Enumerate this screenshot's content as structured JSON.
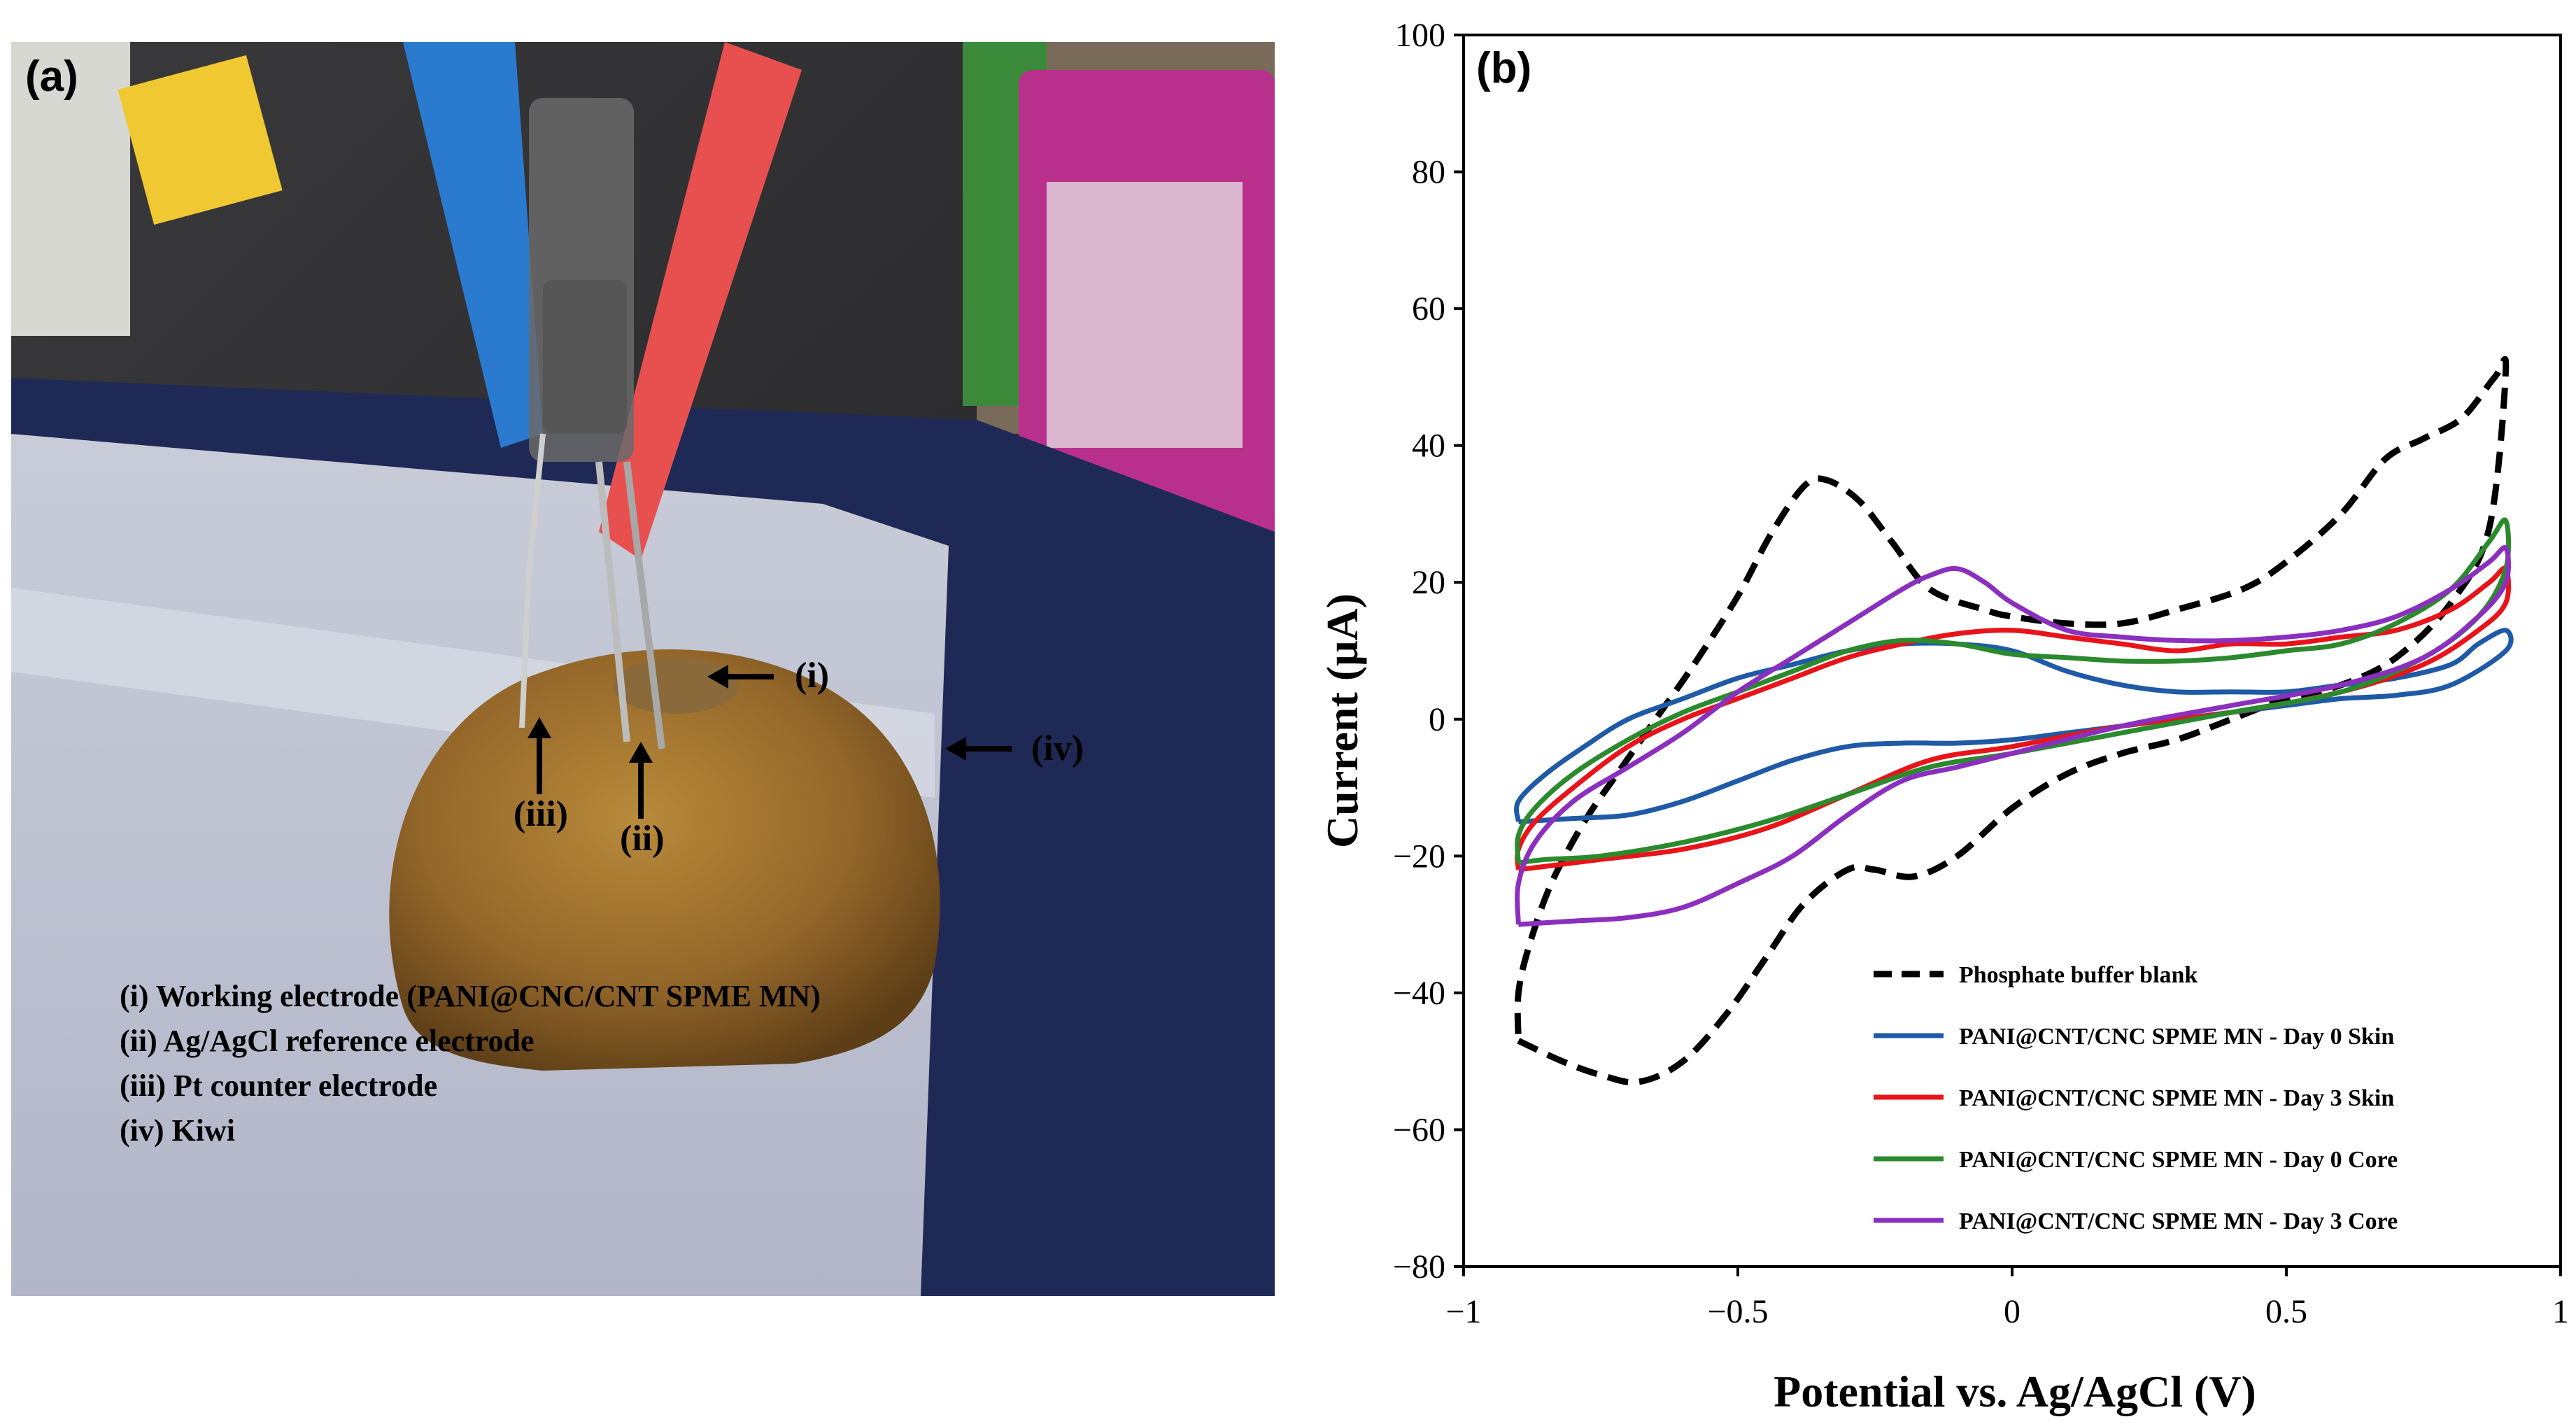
{
  "panel_a": {
    "label": "(a)",
    "markers": [
      "(i)",
      "(ii)",
      "(iii)",
      "(iv)"
    ],
    "legend": [
      "(i) Working electrode (PANI@CNC/CNT SPME MN)",
      "(ii) Ag/AgCl reference electrode",
      "(iii) Pt counter electrode",
      "(iv) Kiwi"
    ]
  },
  "chart_data": {
    "type": "line",
    "panel_label": "(b)",
    "xlabel": "Potential vs. Ag/AgCl (V)",
    "ylabel": "Current (μA)",
    "xlim": [
      -1,
      1
    ],
    "ylim": [
      -80,
      100
    ],
    "x_ticks": [
      -1,
      -0.5,
      0,
      0.5,
      1
    ],
    "x_tick_labels": [
      "−1",
      "−0.5",
      "0",
      "0.5",
      "1"
    ],
    "y_ticks": [
      -80,
      -60,
      -40,
      -20,
      0,
      20,
      40,
      60,
      80,
      100
    ],
    "y_tick_labels": [
      "−80",
      "−60",
      "−40",
      "−20",
      "0",
      "20",
      "40",
      "60",
      "80",
      "100"
    ],
    "grid": false,
    "legend_position": "bottom-right",
    "series": [
      {
        "name": "Phosphate buffer blank",
        "color": "#000000",
        "dashed": true,
        "points": [
          [
            -0.9,
            -47
          ],
          [
            -0.82,
            -50
          ],
          [
            -0.75,
            -52
          ],
          [
            -0.68,
            -53
          ],
          [
            -0.6,
            -50
          ],
          [
            -0.52,
            -43
          ],
          [
            -0.45,
            -35
          ],
          [
            -0.38,
            -27
          ],
          [
            -0.3,
            -22
          ],
          [
            -0.25,
            -22
          ],
          [
            -0.18,
            -23
          ],
          [
            -0.1,
            -20
          ],
          [
            0.0,
            -13
          ],
          [
            0.1,
            -8
          ],
          [
            0.2,
            -5
          ],
          [
            0.3,
            -3
          ],
          [
            0.4,
            0
          ],
          [
            0.5,
            3
          ],
          [
            0.6,
            5
          ],
          [
            0.7,
            9
          ],
          [
            0.8,
            17
          ],
          [
            0.87,
            28
          ],
          [
            0.9,
            51
          ],
          [
            0.88,
            50
          ],
          [
            0.82,
            44
          ],
          [
            0.75,
            41
          ],
          [
            0.68,
            38
          ],
          [
            0.6,
            30
          ],
          [
            0.5,
            23
          ],
          [
            0.42,
            19
          ],
          [
            0.3,
            16
          ],
          [
            0.2,
            14
          ],
          [
            0.1,
            14
          ],
          [
            0.0,
            15
          ],
          [
            -0.05,
            16
          ],
          [
            -0.15,
            19
          ],
          [
            -0.22,
            26
          ],
          [
            -0.28,
            32
          ],
          [
            -0.34,
            35
          ],
          [
            -0.38,
            34
          ],
          [
            -0.44,
            27
          ],
          [
            -0.5,
            18
          ],
          [
            -0.58,
            8
          ],
          [
            -0.65,
            0
          ],
          [
            -0.72,
            -8
          ],
          [
            -0.78,
            -15
          ],
          [
            -0.84,
            -24
          ],
          [
            -0.88,
            -33
          ],
          [
            -0.9,
            -40
          ],
          [
            -0.9,
            -47
          ]
        ]
      },
      {
        "name": "PANI@CNT/CNC SPME MN - Day 0 Skin",
        "color": "#1f5aa6",
        "dashed": false,
        "points": [
          [
            -0.9,
            -15
          ],
          [
            -0.8,
            -14.5
          ],
          [
            -0.7,
            -14
          ],
          [
            -0.6,
            -12
          ],
          [
            -0.5,
            -9
          ],
          [
            -0.4,
            -6
          ],
          [
            -0.3,
            -4
          ],
          [
            -0.2,
            -3.5
          ],
          [
            -0.1,
            -3.5
          ],
          [
            0.0,
            -3
          ],
          [
            0.1,
            -2
          ],
          [
            0.2,
            -1
          ],
          [
            0.3,
            0
          ],
          [
            0.4,
            1
          ],
          [
            0.5,
            2
          ],
          [
            0.6,
            3
          ],
          [
            0.7,
            3.5
          ],
          [
            0.8,
            5
          ],
          [
            0.9,
            10
          ],
          [
            0.9,
            13
          ],
          [
            0.85,
            11
          ],
          [
            0.8,
            8
          ],
          [
            0.7,
            6
          ],
          [
            0.6,
            5
          ],
          [
            0.5,
            4
          ],
          [
            0.4,
            4
          ],
          [
            0.3,
            4
          ],
          [
            0.2,
            5
          ],
          [
            0.1,
            7
          ],
          [
            0.0,
            10
          ],
          [
            -0.1,
            11
          ],
          [
            -0.2,
            11
          ],
          [
            -0.3,
            10
          ],
          [
            -0.4,
            8
          ],
          [
            -0.5,
            6
          ],
          [
            -0.6,
            3
          ],
          [
            -0.7,
            0
          ],
          [
            -0.78,
            -4
          ],
          [
            -0.85,
            -8
          ],
          [
            -0.9,
            -12
          ],
          [
            -0.9,
            -15
          ]
        ]
      },
      {
        "name": "PANI@CNT/CNC SPME MN - Day 3 Skin",
        "color": "#e8141a",
        "dashed": false,
        "points": [
          [
            -0.9,
            -22
          ],
          [
            -0.85,
            -21.5
          ],
          [
            -0.75,
            -20.5
          ],
          [
            -0.6,
            -19
          ],
          [
            -0.45,
            -16
          ],
          [
            -0.3,
            -11
          ],
          [
            -0.15,
            -6
          ],
          [
            0.0,
            -4
          ],
          [
            0.2,
            -1
          ],
          [
            0.4,
            1
          ],
          [
            0.6,
            4
          ],
          [
            0.75,
            8
          ],
          [
            0.85,
            13
          ],
          [
            0.9,
            17
          ],
          [
            0.9,
            22
          ],
          [
            0.87,
            20
          ],
          [
            0.8,
            16
          ],
          [
            0.7,
            13
          ],
          [
            0.6,
            12
          ],
          [
            0.5,
            11
          ],
          [
            0.4,
            11
          ],
          [
            0.3,
            10
          ],
          [
            0.2,
            11
          ],
          [
            0.1,
            12
          ],
          [
            0.0,
            13
          ],
          [
            -0.1,
            12.5
          ],
          [
            -0.2,
            11
          ],
          [
            -0.3,
            9
          ],
          [
            -0.4,
            6
          ],
          [
            -0.5,
            3
          ],
          [
            -0.6,
            0
          ],
          [
            -0.7,
            -4
          ],
          [
            -0.8,
            -10
          ],
          [
            -0.87,
            -15
          ],
          [
            -0.9,
            -19
          ],
          [
            -0.9,
            -22
          ]
        ]
      },
      {
        "name": "PANI@CNT/CNC SPME MN - Day 0 Core",
        "color": "#2b8a2e",
        "dashed": false,
        "points": [
          [
            -0.9,
            -21
          ],
          [
            -0.85,
            -20.5
          ],
          [
            -0.75,
            -20
          ],
          [
            -0.6,
            -18
          ],
          [
            -0.45,
            -15
          ],
          [
            -0.3,
            -11
          ],
          [
            -0.15,
            -7
          ],
          [
            0.0,
            -5
          ],
          [
            0.2,
            -2
          ],
          [
            0.4,
            1
          ],
          [
            0.6,
            4
          ],
          [
            0.75,
            9
          ],
          [
            0.85,
            15
          ],
          [
            0.9,
            22
          ],
          [
            0.9,
            29
          ],
          [
            0.87,
            26
          ],
          [
            0.8,
            19
          ],
          [
            0.7,
            14
          ],
          [
            0.6,
            11
          ],
          [
            0.5,
            10
          ],
          [
            0.4,
            9
          ],
          [
            0.3,
            8.5
          ],
          [
            0.2,
            8.5
          ],
          [
            0.1,
            9
          ],
          [
            0.0,
            9.5
          ],
          [
            -0.1,
            11
          ],
          [
            -0.2,
            11.5
          ],
          [
            -0.3,
            10
          ],
          [
            -0.4,
            7
          ],
          [
            -0.5,
            4
          ],
          [
            -0.6,
            1
          ],
          [
            -0.7,
            -3
          ],
          [
            -0.8,
            -8
          ],
          [
            -0.87,
            -13
          ],
          [
            -0.9,
            -17
          ],
          [
            -0.9,
            -21
          ]
        ]
      },
      {
        "name": "PANI@CNT/CNC SPME MN - Day 3 Core",
        "color": "#8b2fbf",
        "dashed": false,
        "points": [
          [
            -0.9,
            -30
          ],
          [
            -0.8,
            -29.5
          ],
          [
            -0.7,
            -29
          ],
          [
            -0.6,
            -27.5
          ],
          [
            -0.5,
            -24
          ],
          [
            -0.4,
            -20
          ],
          [
            -0.3,
            -14
          ],
          [
            -0.2,
            -9
          ],
          [
            -0.1,
            -7
          ],
          [
            0.0,
            -5
          ],
          [
            0.2,
            -1
          ],
          [
            0.4,
            2
          ],
          [
            0.6,
            5
          ],
          [
            0.75,
            9
          ],
          [
            0.85,
            15
          ],
          [
            0.9,
            20
          ],
          [
            0.9,
            25
          ],
          [
            0.87,
            23
          ],
          [
            0.8,
            19
          ],
          [
            0.7,
            15
          ],
          [
            0.6,
            13
          ],
          [
            0.5,
            12
          ],
          [
            0.4,
            11.5
          ],
          [
            0.3,
            11.5
          ],
          [
            0.2,
            12
          ],
          [
            0.1,
            13
          ],
          [
            0.0,
            17
          ],
          [
            -0.05,
            20
          ],
          [
            -0.1,
            22
          ],
          [
            -0.15,
            21
          ],
          [
            -0.2,
            19
          ],
          [
            -0.3,
            14
          ],
          [
            -0.4,
            9
          ],
          [
            -0.5,
            4
          ],
          [
            -0.6,
            -2
          ],
          [
            -0.7,
            -7
          ],
          [
            -0.8,
            -12
          ],
          [
            -0.87,
            -18
          ],
          [
            -0.9,
            -24
          ],
          [
            -0.9,
            -30
          ]
        ]
      }
    ]
  }
}
